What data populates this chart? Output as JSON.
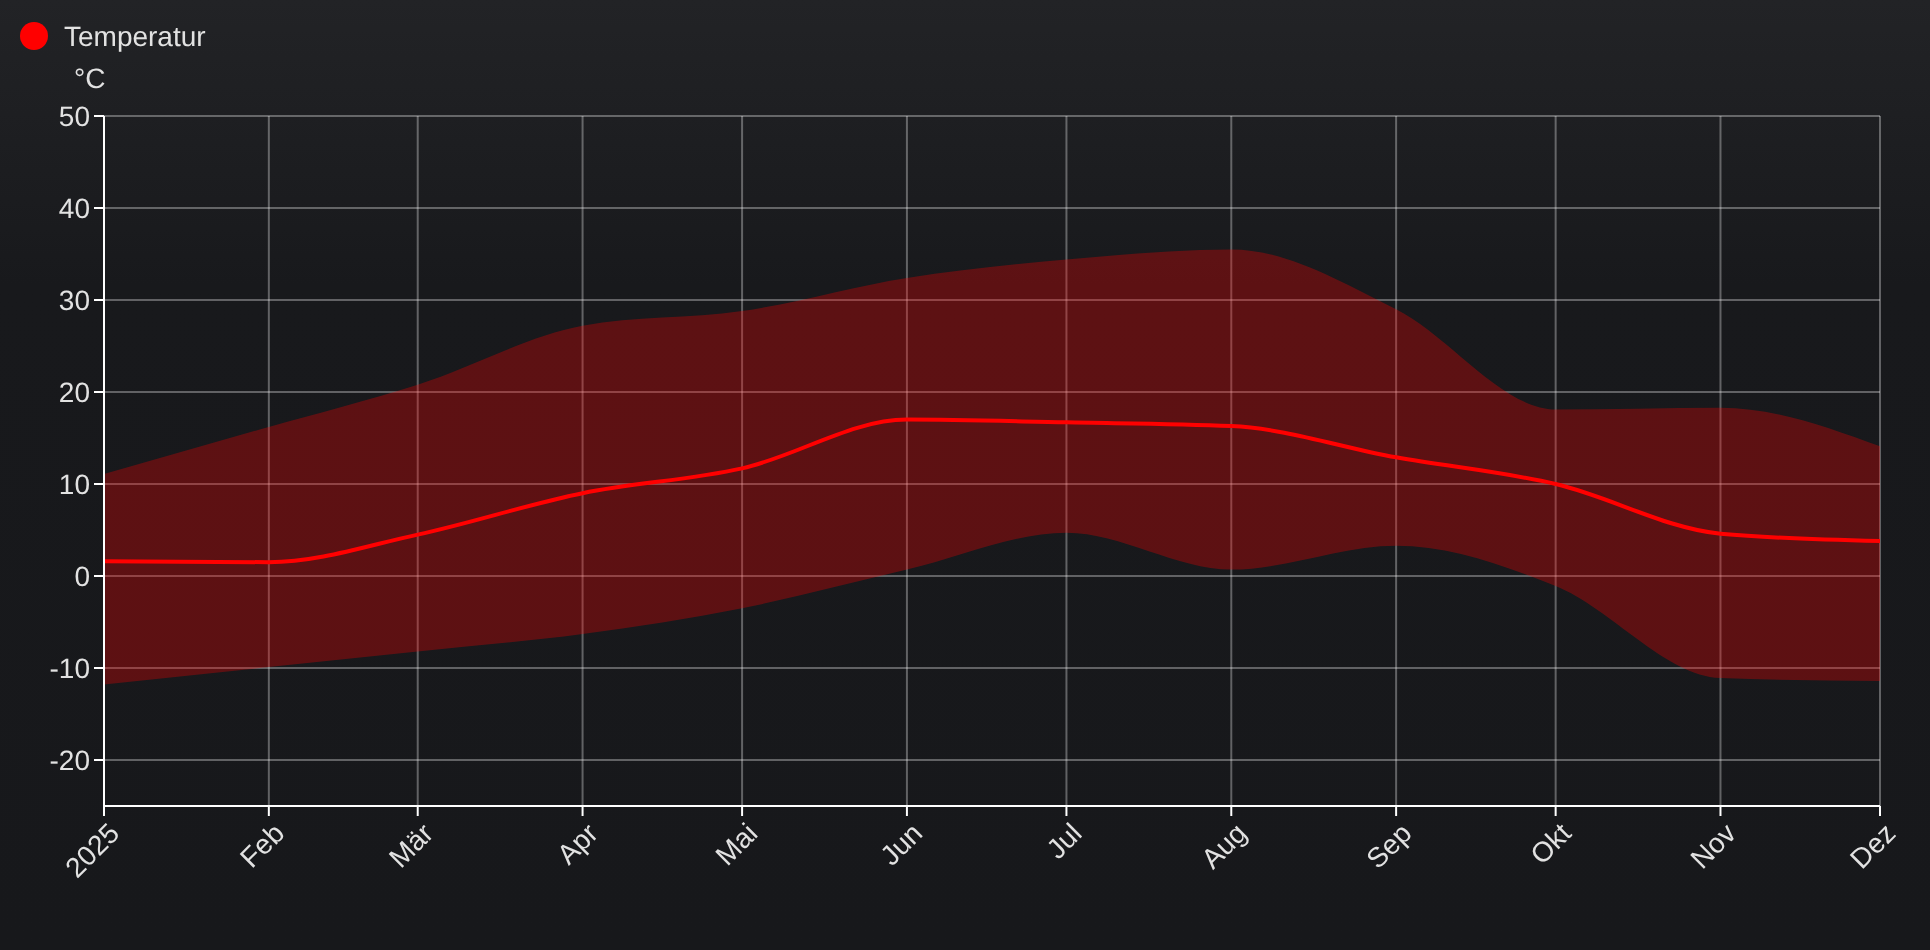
{
  "chart_data": {
    "type": "line",
    "ylabel": "°C",
    "x": [
      "2025-01",
      "2025-02",
      "2025-03",
      "2025-04",
      "2025-05",
      "2025-06",
      "2025-07",
      "2025-08",
      "2025-09",
      "2025-10",
      "2025-11",
      "2025-12"
    ],
    "series": [
      {
        "name": "Temperatur",
        "color": "#ff0000",
        "values": [
          1.6,
          1.5,
          4.5,
          9.0,
          11.7,
          17.0,
          16.7,
          16.3,
          12.9,
          10.0,
          4.6,
          3.8
        ],
        "lower": [
          -11.8,
          -9.9,
          -8.2,
          -6.3,
          -3.5,
          0.7,
          4.7,
          0.7,
          3.3,
          -1.1,
          -11.1,
          -11.4
        ],
        "upper": [
          11.1,
          16.2,
          20.8,
          27.2,
          28.8,
          32.4,
          34.4,
          35.5,
          29.0,
          18.1,
          18.3,
          14.1
        ]
      }
    ],
    "xlim": [
      "2025-01",
      "2025-12"
    ],
    "xticks": [
      {
        "value": "2025-01",
        "label": "2025"
      },
      {
        "value": "2025-02",
        "label": "Feb"
      },
      {
        "value": "2025-03",
        "label": "Mär"
      },
      {
        "value": "2025-04",
        "label": "Apr"
      },
      {
        "value": "2025-05",
        "label": "Mai"
      },
      {
        "value": "2025-06",
        "label": "Jun"
      },
      {
        "value": "2025-07",
        "label": "Jul"
      },
      {
        "value": "2025-08",
        "label": "Aug"
      },
      {
        "value": "2025-09",
        "label": "Sep"
      },
      {
        "value": "2025-10",
        "label": "Okt"
      },
      {
        "value": "2025-11",
        "label": "Nov"
      },
      {
        "value": "2025-12",
        "label": "Dez"
      }
    ],
    "ylim": [
      -25,
      50
    ],
    "yticks": [
      -20,
      -10,
      0,
      10,
      20,
      30,
      40,
      50
    ],
    "grid": true,
    "legend": "top left",
    "marker": "none",
    "line_style": "solid"
  }
}
